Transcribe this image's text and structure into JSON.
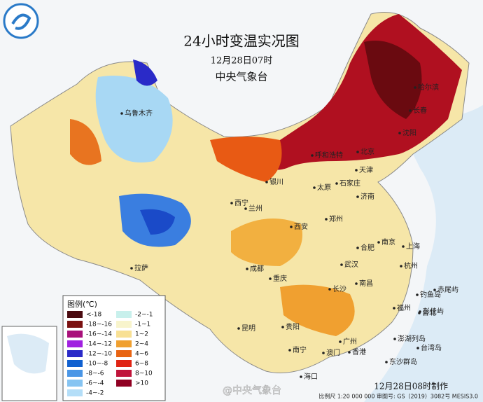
{
  "header": {
    "title": "24小时变温实况图",
    "date": "12月28日07时",
    "agency": "中央气象台"
  },
  "legend": {
    "title": "图例(℃)",
    "items": [
      {
        "label": "<-18",
        "color": "#4a0a10"
      },
      {
        "label": "-18~-16",
        "color": "#7a1010"
      },
      {
        "label": "-16~-14",
        "color": "#a8107a"
      },
      {
        "label": "-14~-12",
        "color": "#a020e0"
      },
      {
        "label": "-12~-10",
        "color": "#2a2ac8"
      },
      {
        "label": "-10~-8",
        "color": "#1060d0"
      },
      {
        "label": "-8~-6",
        "color": "#4a96e6"
      },
      {
        "label": "-6~-4",
        "color": "#86c4f2"
      },
      {
        "label": "-4~-2",
        "color": "#b4def8"
      },
      {
        "label": "-2~-1",
        "color": "#c8f0ec"
      },
      {
        "label": "-1~1",
        "color": "#f8f4cc"
      },
      {
        "label": "1~2",
        "color": "#f8e094"
      },
      {
        "label": "2~4",
        "color": "#f0a030"
      },
      {
        "label": "4~6",
        "color": "#e86412"
      },
      {
        "label": "6~8",
        "color": "#e02414"
      },
      {
        "label": "8~10",
        "color": "#c0143a"
      },
      {
        "label": ">10",
        "color": "#900022"
      }
    ]
  },
  "cities": [
    "乌鲁木齐",
    "哈尔滨",
    "长春",
    "沈阳",
    "北京",
    "天津",
    "呼和浩特",
    "石家庄",
    "太原",
    "济南",
    "银川",
    "西宁",
    "兰州",
    "郑州",
    "西安",
    "南京",
    "上海",
    "合肥",
    "武汉",
    "杭州",
    "成都",
    "重庆",
    "南昌",
    "长沙",
    "福州",
    "台北",
    "贵阳",
    "昆明",
    "广州",
    "南宁",
    "澳门",
    "香港",
    "海口",
    "拉萨",
    "赤尾屿",
    "钓鱼岛",
    "彭佳屿",
    "澎湖列岛",
    "台湾岛",
    "东沙群岛"
  ],
  "footer": {
    "made": "12月28日08时制作",
    "scale": "比例尺 1:20 000 000  审图号: GS（2019）3082号 MESIS3.0",
    "watermark": "@中央气象台"
  }
}
